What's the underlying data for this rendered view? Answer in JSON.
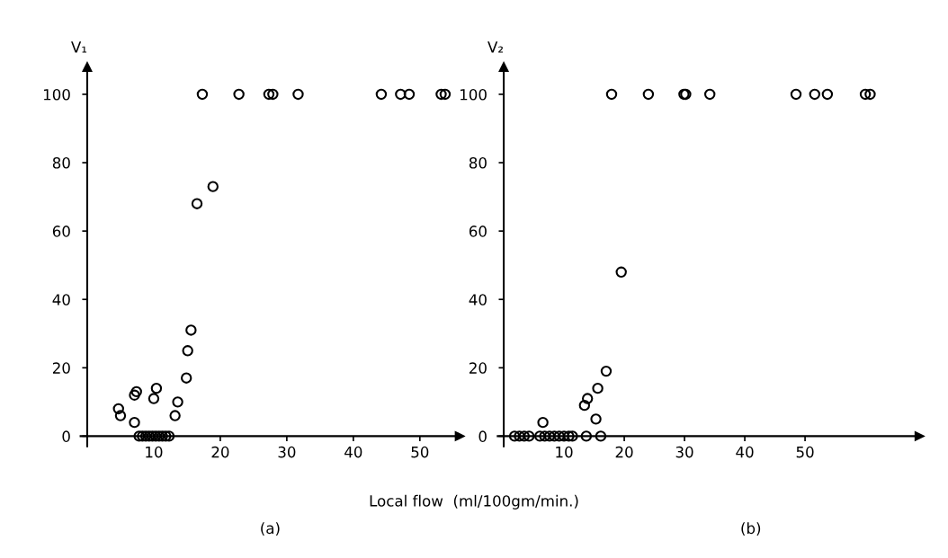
{
  "chart_data": [
    {
      "type": "scatter",
      "title": "(a)",
      "ylabel": "V₁",
      "xlabel": "Local flow  (ml/100gm/min.)",
      "marker": "circle",
      "grid": false,
      "legend": false,
      "xlim": [
        -1,
        56
      ],
      "ylim": [
        -3,
        108
      ],
      "xticks": [
        10,
        20,
        30,
        40,
        50
      ],
      "yticks": [
        0,
        20,
        40,
        60,
        80,
        100
      ],
      "series": [
        {
          "color": "#000000",
          "x": [
            4.7,
            5.0,
            7.1,
            7.1,
            7.4,
            10.0,
            10.4,
            13.2,
            13.6,
            14.9,
            15.1,
            15.6,
            7.8,
            8.3,
            8.8,
            9.3,
            9.8,
            10.3,
            10.8,
            11.3,
            11.8,
            12.3,
            16.5,
            18.9,
            17.3,
            22.8,
            27.3,
            27.9,
            31.7,
            44.2,
            47.1,
            48.4,
            53.2,
            53.8
          ],
          "values": [
            8,
            6,
            4,
            12,
            13,
            11,
            14,
            6,
            10,
            17,
            25,
            31,
            0,
            0,
            0,
            0,
            0,
            0,
            0,
            0,
            0,
            0,
            68,
            73,
            100,
            100,
            100,
            100,
            100,
            100,
            100,
            100,
            100,
            100
          ]
        }
      ]
    },
    {
      "type": "scatter",
      "title": "(b)",
      "ylabel": "V₂",
      "marker": "circle",
      "grid": false,
      "legend": false,
      "xlim": [
        -1,
        69
      ],
      "ylim": [
        -3,
        108
      ],
      "xticks": [
        10,
        20,
        30,
        40,
        50
      ],
      "yticks": [
        0,
        20,
        40,
        60,
        80,
        100
      ],
      "series": [
        {
          "color": "#000000",
          "x": [
            19.5,
            17.0,
            15.6,
            13.9,
            13.4,
            15.3,
            6.5,
            13.7,
            16.1,
            1.8,
            2.6,
            3.4,
            4.2,
            6.0,
            6.8,
            7.6,
            8.4,
            9.2,
            10.0,
            10.8,
            11.4,
            17.9,
            24.0,
            29.9,
            30.2,
            34.2,
            48.5,
            51.6,
            53.7,
            60.0,
            60.8
          ],
          "values": [
            48,
            19,
            14,
            11,
            9,
            5,
            4,
            0,
            0,
            0,
            0,
            0,
            0,
            0,
            0,
            0,
            0,
            0,
            0,
            0,
            0,
            100,
            100,
            100,
            100,
            100,
            100,
            100,
            100,
            100,
            100
          ]
        }
      ]
    }
  ]
}
